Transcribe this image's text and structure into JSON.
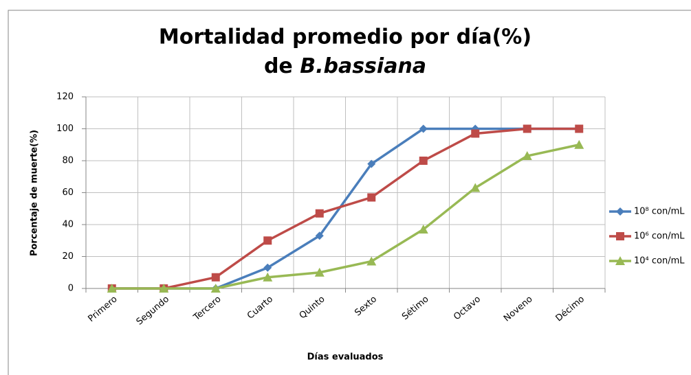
{
  "chart_data": {
    "type": "line",
    "title": [
      "Mortalidad promedio por día(%)",
      "de",
      "B.bassiana"
    ],
    "x_label": "Días evaluados",
    "y_label": "Porcentaje de muerte(%)",
    "categories": [
      "Primero",
      "Segundo",
      "Tercero",
      "Cuarto",
      "Quinto",
      "Sexto",
      "Sétimo",
      "Octavo",
      "Noveno",
      "Décimo"
    ],
    "series": [
      {
        "name": "10⁸ con/mL",
        "color": "#4a7ebb",
        "marker": "diamond",
        "values": [
          0,
          0,
          0,
          13,
          33,
          78,
          100,
          100,
          100,
          100
        ]
      },
      {
        "name": "10⁶ con/mL",
        "color": "#be4b48",
        "marker": "square",
        "values": [
          0,
          0,
          7,
          30,
          47,
          57,
          80,
          97,
          100,
          100
        ]
      },
      {
        "name": "10⁴ con/mL",
        "color": "#98b954",
        "marker": "triangle",
        "values": [
          0,
          0,
          0,
          7,
          10,
          17,
          37,
          63,
          83,
          90
        ]
      }
    ],
    "ylim": [
      0,
      120
    ],
    "yticks": [
      0,
      20,
      40,
      60,
      80,
      100,
      120
    ],
    "grid": true,
    "legend": "right"
  }
}
